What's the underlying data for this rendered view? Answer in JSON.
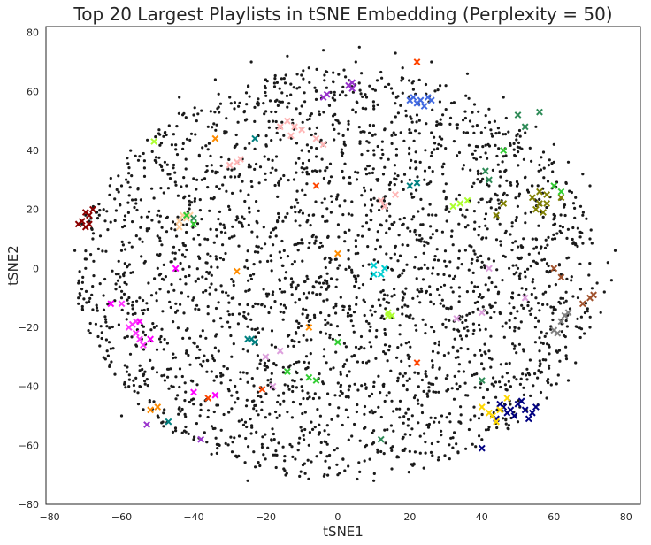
{
  "chart_data": {
    "type": "scatter",
    "title": "Top 20 Largest Playlists in tSNE Embedding (Perplexity = 50)",
    "xlabel": "tSNE1",
    "ylabel": "tSNE2",
    "xlim": [
      -81,
      84
    ],
    "ylim": [
      -80,
      82
    ],
    "xticks": [
      -80,
      -60,
      -40,
      -20,
      0,
      20,
      40,
      60,
      80
    ],
    "yticks": [
      -80,
      -60,
      -40,
      -20,
      0,
      20,
      40,
      60,
      80
    ],
    "grid": false,
    "legend": "none",
    "background_points": {
      "color": "#1a1a1a",
      "marker": "dot",
      "note_shape": "roughly circular cloud of all tracks",
      "center": [
        0,
        -2
      ],
      "radius": 72,
      "points": [
        [
          -70,
          14
        ],
        [
          -68,
          10
        ],
        [
          -65,
          20
        ],
        [
          -60,
          28
        ],
        [
          -55,
          38
        ],
        [
          -48,
          46
        ],
        [
          -40,
          52
        ],
        [
          -30,
          58
        ],
        [
          -20,
          64
        ],
        [
          -8,
          68
        ],
        [
          5,
          70
        ],
        [
          18,
          68
        ],
        [
          30,
          62
        ],
        [
          42,
          54
        ],
        [
          52,
          46
        ],
        [
          60,
          36
        ],
        [
          66,
          24
        ],
        [
          70,
          10
        ],
        [
          72,
          -5
        ],
        [
          70,
          -20
        ],
        [
          66,
          -32
        ],
        [
          58,
          -44
        ],
        [
          50,
          -52
        ],
        [
          40,
          -58
        ],
        [
          28,
          -64
        ],
        [
          15,
          -68
        ],
        [
          0,
          -70
        ],
        [
          -15,
          -68
        ],
        [
          -28,
          -64
        ],
        [
          -40,
          -58
        ],
        [
          -50,
          -50
        ],
        [
          -58,
          -40
        ],
        [
          -64,
          -28
        ],
        [
          -68,
          -14
        ],
        [
          -70,
          0
        ],
        [
          -72,
          -10
        ],
        [
          -60,
          -50
        ],
        [
          -45,
          -55
        ],
        [
          -25,
          -72
        ],
        [
          10,
          -72
        ],
        [
          62,
          -2
        ],
        [
          66,
          8
        ],
        [
          68,
          18
        ],
        [
          54,
          28
        ],
        [
          46,
          38
        ],
        [
          36,
          46
        ],
        [
          22,
          52
        ],
        [
          8,
          58
        ],
        [
          -6,
          60
        ],
        [
          -22,
          56
        ],
        [
          -36,
          48
        ],
        [
          -48,
          36
        ],
        [
          -56,
          22
        ],
        [
          -60,
          6
        ],
        [
          -60,
          -10
        ],
        [
          -56,
          -26
        ],
        [
          -48,
          -38
        ],
        [
          -38,
          -48
        ],
        [
          -24,
          -56
        ],
        [
          -8,
          -60
        ],
        [
          8,
          -60
        ],
        [
          24,
          -56
        ],
        [
          38,
          -50
        ],
        [
          48,
          -40
        ],
        [
          56,
          -28
        ],
        [
          60,
          -14
        ],
        [
          40,
          10
        ],
        [
          30,
          20
        ],
        [
          20,
          30
        ],
        [
          10,
          40
        ],
        [
          -10,
          40
        ],
        [
          -20,
          30
        ],
        [
          -30,
          20
        ],
        [
          -40,
          10
        ],
        [
          -40,
          -10
        ],
        [
          -30,
          -20
        ],
        [
          -20,
          -30
        ],
        [
          -10,
          -40
        ],
        [
          10,
          -40
        ],
        [
          20,
          -30
        ],
        [
          30,
          -20
        ],
        [
          40,
          -10
        ],
        [
          0,
          0
        ],
        [
          5,
          5
        ],
        [
          -5,
          -5
        ],
        [
          12,
          -8
        ],
        [
          -12,
          8
        ],
        [
          15,
          15
        ],
        [
          -15,
          -15
        ],
        [
          25,
          0
        ],
        [
          -25,
          0
        ],
        [
          0,
          25
        ],
        [
          0,
          -25
        ],
        [
          35,
          35
        ],
        [
          -35,
          35
        ],
        [
          35,
          -35
        ],
        [
          -35,
          -35
        ],
        [
          45,
          15
        ],
        [
          -45,
          15
        ],
        [
          45,
          -15
        ],
        [
          -45,
          -15
        ],
        [
          15,
          45
        ],
        [
          -15,
          45
        ],
        [
          15,
          -45
        ],
        [
          -15,
          -45
        ],
        [
          50,
          0
        ],
        [
          -50,
          0
        ],
        [
          0,
          50
        ],
        [
          0,
          -50
        ],
        [
          28,
          42
        ],
        [
          -28,
          42
        ],
        [
          28,
          -42
        ],
        [
          -28,
          -42
        ],
        [
          42,
          28
        ],
        [
          -42,
          28
        ],
        [
          42,
          -28
        ],
        [
          -42,
          -28
        ],
        [
          8,
          18
        ],
        [
          -8,
          18
        ],
        [
          8,
          -18
        ],
        [
          -8,
          -18
        ],
        [
          18,
          8
        ],
        [
          -18,
          8
        ],
        [
          18,
          -8
        ],
        [
          -18,
          -8
        ],
        [
          32,
          8
        ],
        [
          -32,
          8
        ],
        [
          32,
          -8
        ],
        [
          -32,
          -8
        ],
        [
          8,
          32
        ],
        [
          -8,
          32
        ],
        [
          8,
          -32
        ],
        [
          -8,
          -32
        ],
        [
          55,
          10
        ],
        [
          -55,
          10
        ],
        [
          55,
          -10
        ],
        [
          -55,
          -10
        ],
        [
          10,
          55
        ],
        [
          -10,
          55
        ],
        [
          10,
          -55
        ],
        [
          -10,
          -55
        ],
        [
          64,
          -38
        ],
        [
          -68,
          20
        ],
        [
          -70,
          18
        ],
        [
          -69,
          16
        ],
        [
          -71,
          15
        ],
        [
          -72,
          -5
        ],
        [
          -72,
          -12
        ],
        [
          -73,
          6
        ],
        [
          74,
          -8
        ],
        [
          75,
          2
        ],
        [
          76,
          -4
        ],
        [
          77,
          6
        ],
        [
          73,
          -15
        ],
        [
          70,
          28
        ],
        [
          68,
          32
        ],
        [
          64,
          36
        ],
        [
          60,
          42
        ],
        [
          55,
          48
        ],
        [
          50,
          52
        ],
        [
          6,
          75
        ],
        [
          -4,
          74
        ],
        [
          -14,
          72
        ],
        [
          16,
          73
        ],
        [
          26,
          70
        ],
        [
          -24,
          70
        ],
        [
          -34,
          64
        ],
        [
          36,
          66
        ],
        [
          46,
          58
        ],
        [
          -44,
          58
        ]
      ]
    },
    "series": [
      {
        "color": "#8b0000",
        "marker": "x",
        "points": [
          [
            -72,
            15
          ],
          [
            -71,
            16
          ],
          [
            -70,
            14
          ],
          [
            -69,
            18
          ],
          [
            -70,
            19
          ],
          [
            -68,
            20
          ],
          [
            -69,
            15
          ]
        ]
      },
      {
        "color": "#000080",
        "marker": "x",
        "points": [
          [
            46,
            -47
          ],
          [
            48,
            -48
          ],
          [
            50,
            -46
          ],
          [
            52,
            -48
          ],
          [
            54,
            -49
          ],
          [
            49,
            -50
          ],
          [
            51,
            -45
          ],
          [
            55,
            -47
          ],
          [
            47,
            -49
          ],
          [
            53,
            -51
          ],
          [
            45,
            -46
          ],
          [
            44,
            -51
          ],
          [
            40,
            -61
          ]
        ]
      },
      {
        "color": "#ffd700",
        "marker": "x",
        "points": [
          [
            42,
            -49
          ],
          [
            43,
            -50
          ],
          [
            45,
            -48
          ],
          [
            40,
            -47
          ],
          [
            44,
            -52
          ],
          [
            47,
            -44
          ]
        ]
      },
      {
        "color": "#808000",
        "marker": "x",
        "points": [
          [
            54,
            24
          ],
          [
            56,
            22
          ],
          [
            58,
            25
          ],
          [
            55,
            20
          ],
          [
            57,
            19
          ],
          [
            56,
            26
          ],
          [
            58,
            22
          ],
          [
            62,
            24
          ],
          [
            44,
            18
          ],
          [
            46,
            22
          ]
        ]
      },
      {
        "color": "#4169e1",
        "marker": "x",
        "points": [
          [
            20,
            57
          ],
          [
            21,
            58
          ],
          [
            22,
            56
          ],
          [
            23,
            57
          ],
          [
            24,
            55
          ],
          [
            25,
            58
          ],
          [
            26,
            57
          ]
        ]
      },
      {
        "color": "#ff33ff",
        "marker": "x",
        "points": [
          [
            -60,
            -12
          ],
          [
            -58,
            -20
          ],
          [
            -56,
            -22
          ],
          [
            -57,
            -19
          ],
          [
            -55,
            -24
          ],
          [
            -56,
            -18
          ],
          [
            -54,
            -26
          ]
        ]
      },
      {
        "color": "#ffb6b6",
        "marker": "x",
        "points": [
          [
            -14,
            50
          ],
          [
            -12,
            48
          ],
          [
            -16,
            48
          ],
          [
            -10,
            47
          ],
          [
            -13,
            45
          ],
          [
            -30,
            35
          ],
          [
            -28,
            36
          ],
          [
            -27,
            37
          ],
          [
            -6,
            44
          ],
          [
            -4,
            42
          ],
          [
            12,
            23
          ],
          [
            13,
            21
          ],
          [
            16,
            25
          ]
        ]
      },
      {
        "color": "#ffd0a0",
        "marker": "x",
        "points": [
          [
            -44,
            16
          ],
          [
            -43,
            18
          ],
          [
            -42,
            17
          ],
          [
            -41,
            18
          ],
          [
            -44,
            14
          ],
          [
            -40,
            15
          ]
        ]
      },
      {
        "color": "#00ced1",
        "marker": "x",
        "points": [
          [
            10,
            -2
          ],
          [
            12,
            -2
          ],
          [
            13,
            0
          ],
          [
            10,
            1
          ]
        ]
      },
      {
        "color": "#adff2f",
        "marker": "x",
        "points": [
          [
            14,
            -15
          ],
          [
            15,
            -16
          ],
          [
            14,
            -16
          ],
          [
            -51,
            43
          ],
          [
            32,
            21
          ],
          [
            34,
            22
          ],
          [
            36,
            23
          ]
        ]
      },
      {
        "color": "#9932cc",
        "marker": "x",
        "points": [
          [
            3,
            62
          ],
          [
            4,
            63
          ],
          [
            4,
            61
          ],
          [
            -3,
            59
          ],
          [
            -4,
            58
          ],
          [
            -38,
            -58
          ],
          [
            -53,
            -53
          ]
        ]
      },
      {
        "color": "#ff00ff",
        "marker": "x",
        "points": [
          [
            -63,
            -12
          ],
          [
            -55,
            -18
          ],
          [
            -52,
            -24
          ],
          [
            -45,
            0
          ],
          [
            -34,
            -43
          ],
          [
            -40,
            -42
          ]
        ]
      },
      {
        "color": "#008080",
        "marker": "x",
        "points": [
          [
            -24,
            -24
          ],
          [
            -23,
            -25
          ],
          [
            -25,
            -24
          ],
          [
            20,
            28
          ],
          [
            22,
            29
          ],
          [
            -47,
            -52
          ],
          [
            -23,
            44
          ]
        ]
      },
      {
        "color": "#808080",
        "marker": "x",
        "points": [
          [
            63,
            -16
          ],
          [
            64,
            -15
          ],
          [
            62,
            -18
          ],
          [
            60,
            -21
          ],
          [
            61,
            -22
          ]
        ]
      },
      {
        "color": "#2e8b57",
        "marker": "x",
        "points": [
          [
            50,
            52
          ],
          [
            52,
            48
          ],
          [
            56,
            53
          ],
          [
            41,
            33
          ],
          [
            42,
            30
          ],
          [
            40,
            -38
          ],
          [
            -40,
            17
          ],
          [
            12,
            -58
          ]
        ]
      },
      {
        "color": "#ff8c00",
        "marker": "x",
        "points": [
          [
            -50,
            -47
          ],
          [
            -52,
            -48
          ],
          [
            -28,
            -1
          ],
          [
            -8,
            -20
          ],
          [
            0,
            5
          ],
          [
            -34,
            44
          ]
        ]
      },
      {
        "color": "#32cd32",
        "marker": "x",
        "points": [
          [
            -42,
            18
          ],
          [
            -40,
            15
          ],
          [
            -14,
            -35
          ],
          [
            -8,
            -37
          ],
          [
            -6,
            -38
          ],
          [
            0,
            -25
          ],
          [
            46,
            40
          ],
          [
            62,
            26
          ],
          [
            60,
            28
          ]
        ]
      },
      {
        "color": "#dda0dd",
        "marker": "x",
        "points": [
          [
            -20,
            -30
          ],
          [
            -18,
            -40
          ],
          [
            -16,
            -28
          ],
          [
            33,
            -17
          ],
          [
            40,
            -15
          ],
          [
            52,
            -10
          ],
          [
            42,
            0
          ]
        ]
      },
      {
        "color": "#ff4500",
        "marker": "x",
        "points": [
          [
            22,
            70
          ],
          [
            -6,
            28
          ],
          [
            22,
            -32
          ],
          [
            -36,
            -44
          ],
          [
            -21,
            -41
          ]
        ]
      },
      {
        "color": "#a0522d",
        "marker": "x",
        "points": [
          [
            70,
            -10
          ],
          [
            71,
            -9
          ],
          [
            68,
            -12
          ],
          [
            62,
            -3
          ],
          [
            60,
            0
          ]
        ]
      }
    ]
  }
}
